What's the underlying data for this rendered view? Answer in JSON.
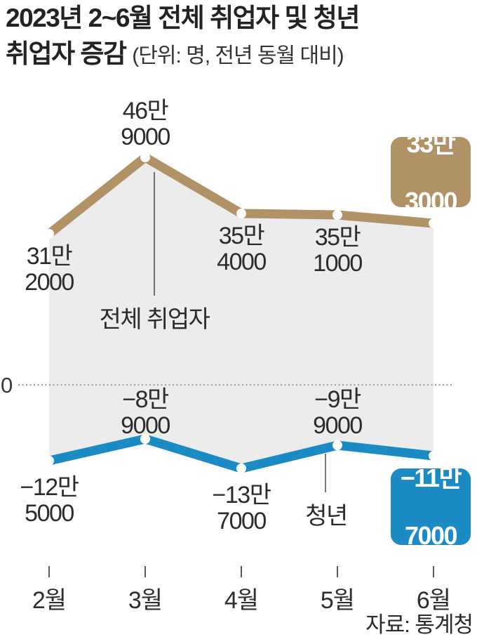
{
  "header": {
    "title_line1": "2023년 2~6월 전체 취업자 및 청년",
    "title_line2": "취업자 증감",
    "subtitle": "(단위: 명, 전년 동월 대비)"
  },
  "footer": {
    "source": "자료: 통계청"
  },
  "chart_data": {
    "type": "line",
    "title": "2023년 2~6월 전체 취업자 및 청년 취업자 증감",
    "unit_note": "단위: 명, 전년 동월 대비",
    "categories": [
      "2월",
      "3월",
      "4월",
      "5월",
      "6월"
    ],
    "zero_label": "0",
    "ylim": [
      -150000,
      500000
    ],
    "grid": "zero-baseline-dotted-only",
    "legend_position": "inline-annotations",
    "fill_between_color": "#ececec",
    "series": [
      {
        "name": "전체 취업자",
        "color": "#b19266",
        "values": [
          312000,
          469000,
          354000,
          351000,
          333000
        ],
        "point_labels": [
          [
            "31만",
            "2000"
          ],
          [
            "46만",
            "9000"
          ],
          [
            "35만",
            "4000"
          ],
          [
            "35만",
            "1000"
          ],
          [
            "33만",
            "3000"
          ]
        ]
      },
      {
        "name": "청년",
        "color": "#1c8bc4",
        "values": [
          -125000,
          -89000,
          -137000,
          -99000,
          -117000
        ],
        "point_labels": [
          [
            "−12만",
            "5000"
          ],
          [
            "−8만",
            "9000"
          ],
          [
            "−13만",
            "7000"
          ],
          [
            "−9만",
            "9000"
          ],
          [
            "−11만",
            "7000"
          ]
        ]
      }
    ],
    "source": "자료: 통계청"
  }
}
